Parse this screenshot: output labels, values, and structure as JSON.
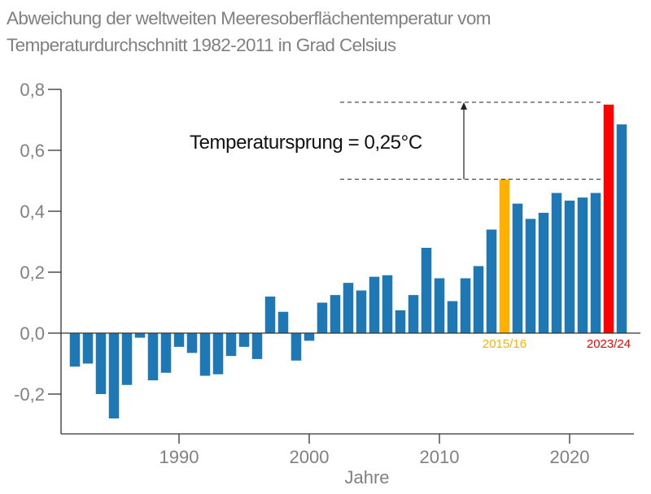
{
  "chart_data": {
    "type": "bar",
    "title_line1": "Abweichung der weltweiten Meeresoberflächentemperatur vom",
    "title_line2": "Temperaturdurchschnitt 1982-2011 in Grad Celsius",
    "xlabel": "Jahre",
    "ylabel": "",
    "ylim": [
      -0.33,
      0.8
    ],
    "xlim": [
      1981,
      2025
    ],
    "grid": false,
    "yticks": [
      -0.2,
      0.0,
      0.2,
      0.4,
      0.6,
      0.8
    ],
    "ytick_labels": [
      "-0,2",
      "0,0",
      "0,2",
      "0,4",
      "0,6",
      "0,8"
    ],
    "xticks": [
      1990,
      2000,
      2010,
      2020
    ],
    "xtick_labels": [
      "1990",
      "2000",
      "2010",
      "2020"
    ],
    "x": [
      1982,
      1983,
      1984,
      1985,
      1986,
      1987,
      1988,
      1989,
      1990,
      1991,
      1992,
      1993,
      1994,
      1995,
      1996,
      1997,
      1998,
      1999,
      2000,
      2001,
      2002,
      2003,
      2004,
      2005,
      2006,
      2007,
      2008,
      2009,
      2010,
      2011,
      2012,
      2013,
      2014,
      2015,
      2016,
      2017,
      2018,
      2019,
      2020,
      2021,
      2022,
      2023,
      2024
    ],
    "values": [
      -0.11,
      -0.1,
      -0.2,
      -0.28,
      -0.17,
      -0.015,
      -0.155,
      -0.13,
      -0.045,
      -0.065,
      -0.14,
      -0.135,
      -0.075,
      -0.045,
      -0.085,
      0.12,
      0.07,
      -0.09,
      -0.025,
      0.1,
      0.125,
      0.165,
      0.14,
      0.185,
      0.19,
      0.075,
      0.125,
      0.28,
      0.18,
      0.105,
      0.18,
      0.22,
      0.34,
      0.505,
      0.425,
      0.375,
      0.395,
      0.46,
      0.435,
      0.445,
      0.46,
      0.75,
      0.685
    ],
    "colors": {
      "default": "#1f77b4",
      "highlight_2015": "#ffb000",
      "highlight_2023": "#ff0000",
      "text": "#808080",
      "axis": "#333333"
    },
    "highlights": [
      {
        "year": 2015,
        "label": "2015/16",
        "color": "#ffb000"
      },
      {
        "year": 2023,
        "label": "2023/24",
        "color": "#ff0000"
      }
    ],
    "annotation": {
      "text": "Temperatursprung = 0,25°C",
      "from_value": 0.505,
      "to_value": 0.755
    }
  }
}
